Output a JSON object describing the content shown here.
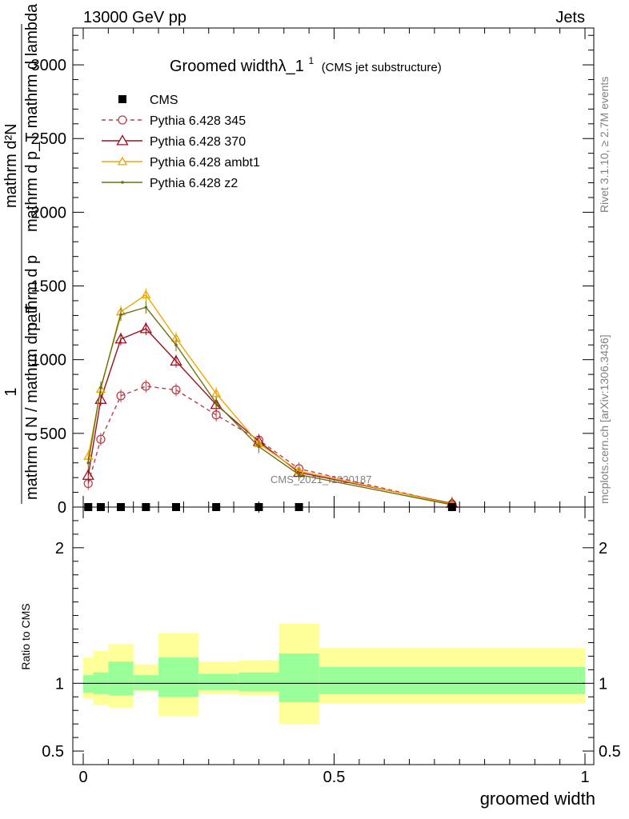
{
  "header": {
    "left": "13000 GeV pp",
    "right": "Jets"
  },
  "side_text": {
    "rivet": "Rivet 3.1.10, ≥ 2.7M events",
    "mcplots": "mcplots.cern.ch [arXiv:1306.3436]"
  },
  "watermark": "CMS_2021_I1920187",
  "chart_data": [
    {
      "type": "line",
      "title": "Groomed widthλ_1",
      "title_sup": "1",
      "subtitle": "(CMS jet substructure)",
      "ylabel": "1 / mathrm d N / mathrm d p_T mathrm d p_T mathrm d^2N / mathrm d p_T mathrm d lambda",
      "ylabel_parts": {
        "num": "1",
        "den": "mathrm d N / mathrm d p_T",
        "frac2_num": "mathrm d²N",
        "frac2_den": "mathrm d p_T mathrm d lambda",
        "overlap": "mathrm d p"
      },
      "xlim": [
        0,
        1
      ],
      "ylim": [
        0,
        3250
      ],
      "yticks": [
        0,
        500,
        1000,
        1500,
        2000,
        2500,
        3000
      ],
      "ytick_labels": [
        "0",
        "500",
        "1000",
        "1500",
        "2000",
        "2500",
        "3000"
      ],
      "legend_position": "top-left",
      "cms": {
        "name": "CMS",
        "x": [
          0.01,
          0.035,
          0.075,
          0.125,
          0.185,
          0.265,
          0.35,
          0.43,
          0.735
        ],
        "y": [
          0,
          0,
          0,
          0,
          0,
          0,
          0,
          0,
          0
        ]
      },
      "series": [
        {
          "name": "Pythia 6.428 345",
          "color": "#b8404a",
          "style": "dashed",
          "marker": "circle",
          "x": [
            0.01,
            0.035,
            0.075,
            0.125,
            0.185,
            0.265,
            0.35,
            0.43,
            0.735
          ],
          "y": [
            160,
            460,
            755,
            820,
            795,
            625,
            455,
            260,
            20
          ]
        },
        {
          "name": "Pythia 6.428 370",
          "color": "#9b1020",
          "style": "solid",
          "marker": "triangle",
          "x": [
            0.01,
            0.035,
            0.075,
            0.125,
            0.185,
            0.265,
            0.35,
            0.43,
            0.735
          ],
          "y": [
            215,
            730,
            1140,
            1210,
            990,
            695,
            445,
            235,
            25
          ]
        },
        {
          "name": "Pythia 6.428 ambt1",
          "color": "#f0a500",
          "style": "solid",
          "marker": "triangle",
          "x": [
            0.01,
            0.035,
            0.075,
            0.125,
            0.185,
            0.265,
            0.35,
            0.43,
            0.735
          ],
          "y": [
            345,
            800,
            1325,
            1440,
            1145,
            770,
            430,
            245,
            20
          ]
        },
        {
          "name": "Pythia 6.428 z2",
          "color": "#6b7010",
          "style": "solid",
          "marker": "dot",
          "x": [
            0.01,
            0.035,
            0.075,
            0.125,
            0.185,
            0.265,
            0.35,
            0.43,
            0.735
          ],
          "y": [
            300,
            810,
            1305,
            1355,
            1100,
            705,
            410,
            220,
            15
          ]
        }
      ]
    },
    {
      "type": "area",
      "xlabel": "groomed width",
      "ylabel": "Ratio to CMS",
      "xlim": [
        0,
        1
      ],
      "ylim": [
        0.4,
        2.3
      ],
      "yticks": [
        0.5,
        1,
        2
      ],
      "ytick_labels": [
        "0.5",
        "1",
        "2"
      ],
      "xticks": [
        0,
        0.5,
        1
      ],
      "xtick_labels": [
        "0",
        "0.5",
        "1"
      ],
      "reference_line": 1,
      "bins": [
        {
          "lo": 0.0,
          "hi": 0.02,
          "band_lo": 0.93,
          "band_hi": 1.06,
          "outer_lo": 0.89,
          "outer_hi": 1.19
        },
        {
          "lo": 0.02,
          "hi": 0.05,
          "band_lo": 0.92,
          "band_hi": 1.08,
          "outer_lo": 0.84,
          "outer_hi": 1.24
        },
        {
          "lo": 0.05,
          "hi": 0.1,
          "band_lo": 0.91,
          "band_hi": 1.16,
          "outer_lo": 0.82,
          "outer_hi": 1.29
        },
        {
          "lo": 0.1,
          "hi": 0.15,
          "band_lo": 0.95,
          "band_hi": 1.06,
          "outer_lo": 0.94,
          "outer_hi": 1.14
        },
        {
          "lo": 0.15,
          "hi": 0.23,
          "band_lo": 0.9,
          "band_hi": 1.19,
          "outer_lo": 0.76,
          "outer_hi": 1.37
        },
        {
          "lo": 0.23,
          "hi": 0.31,
          "band_lo": 0.95,
          "band_hi": 1.07,
          "outer_lo": 0.92,
          "outer_hi": 1.16
        },
        {
          "lo": 0.31,
          "hi": 0.39,
          "band_lo": 0.94,
          "band_hi": 1.08,
          "outer_lo": 0.91,
          "outer_hi": 1.17
        },
        {
          "lo": 0.39,
          "hi": 0.47,
          "band_lo": 0.86,
          "band_hi": 1.22,
          "outer_lo": 0.7,
          "outer_hi": 1.44
        },
        {
          "lo": 0.47,
          "hi": 1.0,
          "band_lo": 0.92,
          "band_hi": 1.12,
          "outer_lo": 0.85,
          "outer_hi": 1.26
        }
      ]
    }
  ]
}
